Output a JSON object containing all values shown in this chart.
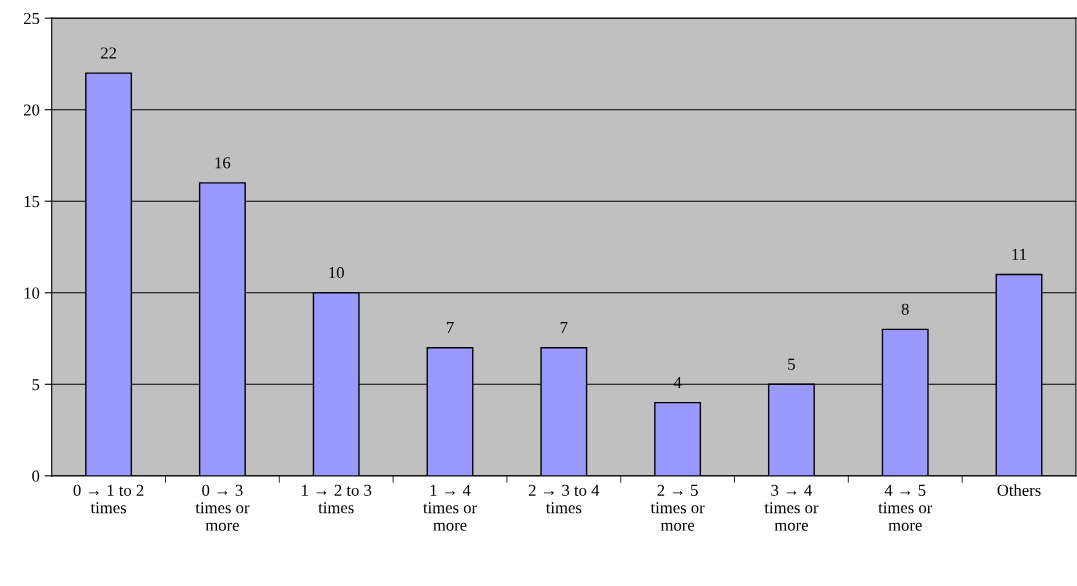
{
  "chart_data": {
    "type": "bar",
    "categories": [
      "0 → 1 to 2\ntimes",
      "0 → 3\ntimes or\nmore",
      "1 → 2 to 3\ntimes",
      "1 → 4\ntimes or\nmore",
      "2 → 3 to 4\ntimes",
      "2 → 5\ntimes or\nmore",
      "3 → 4\ntimes or\nmore",
      "4 → 5\ntimes or\nmore",
      "Others"
    ],
    "values": [
      22,
      16,
      10,
      7,
      7,
      4,
      5,
      8,
      11
    ],
    "color": "#9999ff",
    "ylim": [
      0,
      25
    ],
    "yticks": [
      0,
      5,
      10,
      15,
      20,
      25
    ],
    "grid": "y",
    "data_labels": true,
    "legend": false
  }
}
